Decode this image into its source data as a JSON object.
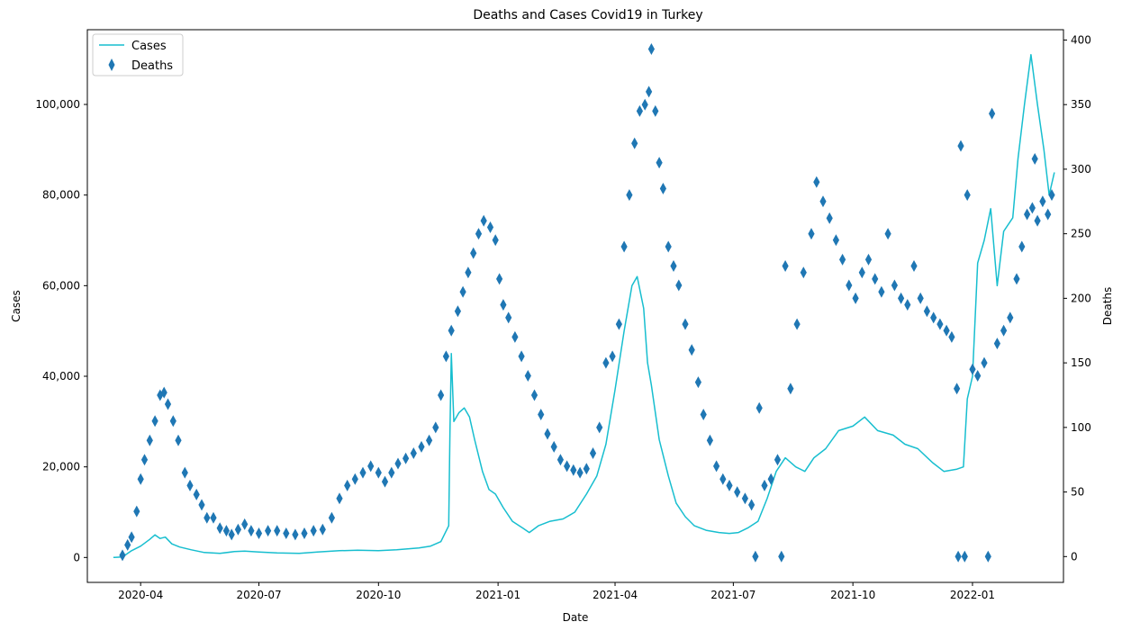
{
  "chart_data": {
    "type": "line",
    "title": "Deaths and Cases Covid19 in Turkey",
    "xlabel": "Date",
    "ylabel_left": "Cases",
    "ylabel_right": "Deaths",
    "x_range": [
      "2020-02-20",
      "2022-03-12"
    ],
    "y_left_range": [
      -5500,
      116500
    ],
    "y_right_range": [
      -20,
      408
    ],
    "x_ticks": [
      "2020-04",
      "2020-07",
      "2020-10",
      "2021-01",
      "2021-04",
      "2021-07",
      "2021-10",
      "2022-01"
    ],
    "y_left_ticks": [
      0,
      20000,
      40000,
      60000,
      80000,
      100000
    ],
    "y_left_tick_labels": [
      "0",
      "20,000",
      "40,000",
      "60,000",
      "80,000",
      "100,000"
    ],
    "y_right_ticks": [
      0,
      50,
      100,
      150,
      200,
      250,
      300,
      350,
      400
    ],
    "grid": false,
    "legend": "top-left",
    "series": [
      {
        "name": "Cases",
        "axis": "left",
        "style": "line",
        "color": "#17becf",
        "points": [
          [
            "2020-03-11",
            0
          ],
          [
            "2020-03-18",
            100
          ],
          [
            "2020-03-25",
            1500
          ],
          [
            "2020-04-01",
            2500
          ],
          [
            "2020-04-08",
            4000
          ],
          [
            "2020-04-12",
            5000
          ],
          [
            "2020-04-16",
            4200
          ],
          [
            "2020-04-20",
            4500
          ],
          [
            "2020-04-25",
            3000
          ],
          [
            "2020-05-01",
            2300
          ],
          [
            "2020-05-10",
            1700
          ],
          [
            "2020-05-20",
            1100
          ],
          [
            "2020-06-01",
            900
          ],
          [
            "2020-06-12",
            1300
          ],
          [
            "2020-06-20",
            1400
          ],
          [
            "2020-07-01",
            1200
          ],
          [
            "2020-07-15",
            1000
          ],
          [
            "2020-08-01",
            900
          ],
          [
            "2020-08-15",
            1200
          ],
          [
            "2020-09-01",
            1500
          ],
          [
            "2020-09-15",
            1600
          ],
          [
            "2020-10-01",
            1500
          ],
          [
            "2020-10-15",
            1700
          ],
          [
            "2020-11-01",
            2100
          ],
          [
            "2020-11-10",
            2500
          ],
          [
            "2020-11-18",
            3500
          ],
          [
            "2020-11-24",
            7000
          ],
          [
            "2020-11-25",
            28000
          ],
          [
            "2020-11-26",
            45000
          ],
          [
            "2020-11-28",
            30000
          ],
          [
            "2020-12-02",
            32000
          ],
          [
            "2020-12-06",
            33000
          ],
          [
            "2020-12-10",
            31000
          ],
          [
            "2020-12-14",
            26000
          ],
          [
            "2020-12-20",
            19000
          ],
          [
            "2020-12-25",
            15000
          ],
          [
            "2020-12-30",
            14000
          ],
          [
            "2021-01-05",
            11000
          ],
          [
            "2021-01-12",
            8000
          ],
          [
            "2021-01-20",
            6500
          ],
          [
            "2021-01-25",
            5500
          ],
          [
            "2021-02-01",
            7000
          ],
          [
            "2021-02-10",
            8000
          ],
          [
            "2021-02-20",
            8500
          ],
          [
            "2021-03-01",
            10000
          ],
          [
            "2021-03-10",
            14000
          ],
          [
            "2021-03-18",
            18000
          ],
          [
            "2021-03-25",
            25000
          ],
          [
            "2021-04-01",
            37000
          ],
          [
            "2021-04-08",
            50000
          ],
          [
            "2021-04-14",
            60000
          ],
          [
            "2021-04-18",
            62000
          ],
          [
            "2021-04-23",
            55000
          ],
          [
            "2021-04-26",
            43000
          ],
          [
            "2021-04-29",
            38000
          ],
          [
            "2021-05-05",
            26000
          ],
          [
            "2021-05-12",
            18000
          ],
          [
            "2021-05-18",
            12000
          ],
          [
            "2021-05-25",
            9000
          ],
          [
            "2021-06-01",
            7000
          ],
          [
            "2021-06-10",
            6000
          ],
          [
            "2021-06-20",
            5500
          ],
          [
            "2021-06-28",
            5300
          ],
          [
            "2021-07-05",
            5500
          ],
          [
            "2021-07-12",
            6500
          ],
          [
            "2021-07-20",
            8000
          ],
          [
            "2021-07-27",
            13000
          ],
          [
            "2021-08-03",
            19000
          ],
          [
            "2021-08-10",
            22000
          ],
          [
            "2021-08-18",
            20000
          ],
          [
            "2021-08-25",
            19000
          ],
          [
            "2021-09-01",
            22000
          ],
          [
            "2021-09-10",
            24000
          ],
          [
            "2021-09-20",
            28000
          ],
          [
            "2021-10-01",
            29000
          ],
          [
            "2021-10-10",
            31000
          ],
          [
            "2021-10-20",
            28000
          ],
          [
            "2021-11-01",
            27000
          ],
          [
            "2021-11-10",
            25000
          ],
          [
            "2021-11-20",
            24000
          ],
          [
            "2021-12-01",
            21000
          ],
          [
            "2021-12-10",
            19000
          ],
          [
            "2021-12-20",
            19500
          ],
          [
            "2021-12-25",
            20000
          ],
          [
            "2021-12-28",
            35000
          ],
          [
            "2022-01-01",
            40000
          ],
          [
            "2022-01-05",
            65000
          ],
          [
            "2022-01-10",
            70000
          ],
          [
            "2022-01-15",
            77000
          ],
          [
            "2022-01-20",
            60000
          ],
          [
            "2022-01-25",
            72000
          ],
          [
            "2022-02-01",
            75000
          ],
          [
            "2022-02-05",
            88000
          ],
          [
            "2022-02-10",
            100000
          ],
          [
            "2022-02-15",
            111000
          ],
          [
            "2022-02-20",
            100000
          ],
          [
            "2022-02-25",
            90000
          ],
          [
            "2022-03-01",
            80000
          ],
          [
            "2022-03-05",
            85000
          ]
        ]
      },
      {
        "name": "Deaths",
        "axis": "right",
        "style": "marker",
        "marker": "thin_diamond",
        "color": "#1f77b4",
        "points": [
          [
            "2020-03-18",
            1
          ],
          [
            "2020-03-22",
            9
          ],
          [
            "2020-03-25",
            15
          ],
          [
            "2020-03-29",
            35
          ],
          [
            "2020-04-01",
            60
          ],
          [
            "2020-04-04",
            75
          ],
          [
            "2020-04-08",
            90
          ],
          [
            "2020-04-12",
            105
          ],
          [
            "2020-04-16",
            125
          ],
          [
            "2020-04-19",
            127
          ],
          [
            "2020-04-22",
            118
          ],
          [
            "2020-04-26",
            105
          ],
          [
            "2020-04-30",
            90
          ],
          [
            "2020-05-05",
            65
          ],
          [
            "2020-05-09",
            55
          ],
          [
            "2020-05-14",
            48
          ],
          [
            "2020-05-18",
            40
          ],
          [
            "2020-05-22",
            30
          ],
          [
            "2020-05-27",
            30
          ],
          [
            "2020-06-01",
            22
          ],
          [
            "2020-06-06",
            20
          ],
          [
            "2020-06-10",
            17
          ],
          [
            "2020-06-15",
            21
          ],
          [
            "2020-06-20",
            25
          ],
          [
            "2020-06-25",
            20
          ],
          [
            "2020-07-01",
            18
          ],
          [
            "2020-07-08",
            20
          ],
          [
            "2020-07-15",
            20
          ],
          [
            "2020-07-22",
            18
          ],
          [
            "2020-07-29",
            17
          ],
          [
            "2020-08-05",
            18
          ],
          [
            "2020-08-12",
            20
          ],
          [
            "2020-08-19",
            21
          ],
          [
            "2020-08-26",
            30
          ],
          [
            "2020-09-01",
            45
          ],
          [
            "2020-09-07",
            55
          ],
          [
            "2020-09-13",
            60
          ],
          [
            "2020-09-19",
            65
          ],
          [
            "2020-09-25",
            70
          ],
          [
            "2020-10-01",
            65
          ],
          [
            "2020-10-06",
            58
          ],
          [
            "2020-10-11",
            65
          ],
          [
            "2020-10-16",
            72
          ],
          [
            "2020-10-22",
            76
          ],
          [
            "2020-10-28",
            80
          ],
          [
            "2020-11-03",
            85
          ],
          [
            "2020-11-09",
            90
          ],
          [
            "2020-11-14",
            100
          ],
          [
            "2020-11-18",
            125
          ],
          [
            "2020-11-22",
            155
          ],
          [
            "2020-11-26",
            175
          ],
          [
            "2020-12-01",
            190
          ],
          [
            "2020-12-05",
            205
          ],
          [
            "2020-12-09",
            220
          ],
          [
            "2020-12-13",
            235
          ],
          [
            "2020-12-17",
            250
          ],
          [
            "2020-12-21",
            260
          ],
          [
            "2020-12-26",
            255
          ],
          [
            "2020-12-30",
            245
          ],
          [
            "2021-01-02",
            215
          ],
          [
            "2021-01-05",
            195
          ],
          [
            "2021-01-09",
            185
          ],
          [
            "2021-01-14",
            170
          ],
          [
            "2021-01-19",
            155
          ],
          [
            "2021-01-24",
            140
          ],
          [
            "2021-01-29",
            125
          ],
          [
            "2021-02-03",
            110
          ],
          [
            "2021-02-08",
            95
          ],
          [
            "2021-02-13",
            85
          ],
          [
            "2021-02-18",
            75
          ],
          [
            "2021-02-23",
            70
          ],
          [
            "2021-02-28",
            67
          ],
          [
            "2021-03-05",
            65
          ],
          [
            "2021-03-10",
            68
          ],
          [
            "2021-03-15",
            80
          ],
          [
            "2021-03-20",
            100
          ],
          [
            "2021-03-25",
            150
          ],
          [
            "2021-03-30",
            155
          ],
          [
            "2021-04-04",
            180
          ],
          [
            "2021-04-08",
            240
          ],
          [
            "2021-04-12",
            280
          ],
          [
            "2021-04-16",
            320
          ],
          [
            "2021-04-20",
            345
          ],
          [
            "2021-04-24",
            350
          ],
          [
            "2021-04-27",
            360
          ],
          [
            "2021-04-29",
            393
          ],
          [
            "2021-05-02",
            345
          ],
          [
            "2021-05-05",
            305
          ],
          [
            "2021-05-08",
            285
          ],
          [
            "2021-05-12",
            240
          ],
          [
            "2021-05-16",
            225
          ],
          [
            "2021-05-20",
            210
          ],
          [
            "2021-05-25",
            180
          ],
          [
            "2021-05-30",
            160
          ],
          [
            "2021-06-04",
            135
          ],
          [
            "2021-06-08",
            110
          ],
          [
            "2021-06-13",
            90
          ],
          [
            "2021-06-18",
            70
          ],
          [
            "2021-06-23",
            60
          ],
          [
            "2021-06-28",
            55
          ],
          [
            "2021-07-04",
            50
          ],
          [
            "2021-07-10",
            45
          ],
          [
            "2021-07-15",
            40
          ],
          [
            "2021-07-18",
            0
          ],
          [
            "2021-07-21",
            115
          ],
          [
            "2021-07-25",
            55
          ],
          [
            "2021-07-30",
            60
          ],
          [
            "2021-08-04",
            75
          ],
          [
            "2021-08-07",
            0
          ],
          [
            "2021-08-10",
            225
          ],
          [
            "2021-08-14",
            130
          ],
          [
            "2021-08-19",
            180
          ],
          [
            "2021-08-24",
            220
          ],
          [
            "2021-08-30",
            250
          ],
          [
            "2021-09-03",
            290
          ],
          [
            "2021-09-08",
            275
          ],
          [
            "2021-09-13",
            262
          ],
          [
            "2021-09-18",
            245
          ],
          [
            "2021-09-23",
            230
          ],
          [
            "2021-09-28",
            210
          ],
          [
            "2021-10-03",
            200
          ],
          [
            "2021-10-08",
            220
          ],
          [
            "2021-10-13",
            230
          ],
          [
            "2021-10-18",
            215
          ],
          [
            "2021-10-23",
            205
          ],
          [
            "2021-10-28",
            250
          ],
          [
            "2021-11-02",
            210
          ],
          [
            "2021-11-07",
            200
          ],
          [
            "2021-11-12",
            195
          ],
          [
            "2021-11-17",
            225
          ],
          [
            "2021-11-22",
            200
          ],
          [
            "2021-11-27",
            190
          ],
          [
            "2021-12-02",
            185
          ],
          [
            "2021-12-07",
            180
          ],
          [
            "2021-12-12",
            175
          ],
          [
            "2021-12-16",
            170
          ],
          [
            "2021-12-20",
            130
          ],
          [
            "2021-12-21",
            0
          ],
          [
            "2021-12-23",
            318
          ],
          [
            "2021-12-26",
            0
          ],
          [
            "2021-12-28",
            280
          ],
          [
            "2022-01-01",
            145
          ],
          [
            "2022-01-05",
            140
          ],
          [
            "2022-01-10",
            150
          ],
          [
            "2022-01-13",
            0
          ],
          [
            "2022-01-16",
            343
          ],
          [
            "2022-01-20",
            165
          ],
          [
            "2022-01-25",
            175
          ],
          [
            "2022-01-30",
            185
          ],
          [
            "2022-02-04",
            215
          ],
          [
            "2022-02-08",
            240
          ],
          [
            "2022-02-12",
            265
          ],
          [
            "2022-02-16",
            270
          ],
          [
            "2022-02-18",
            308
          ],
          [
            "2022-02-20",
            260
          ],
          [
            "2022-02-24",
            275
          ],
          [
            "2022-02-28",
            265
          ],
          [
            "2022-03-03",
            280
          ]
        ]
      }
    ]
  },
  "colors": {
    "cases": "#17becf",
    "deaths": "#1f77b4",
    "axis": "#000000",
    "background": "#ffffff"
  }
}
